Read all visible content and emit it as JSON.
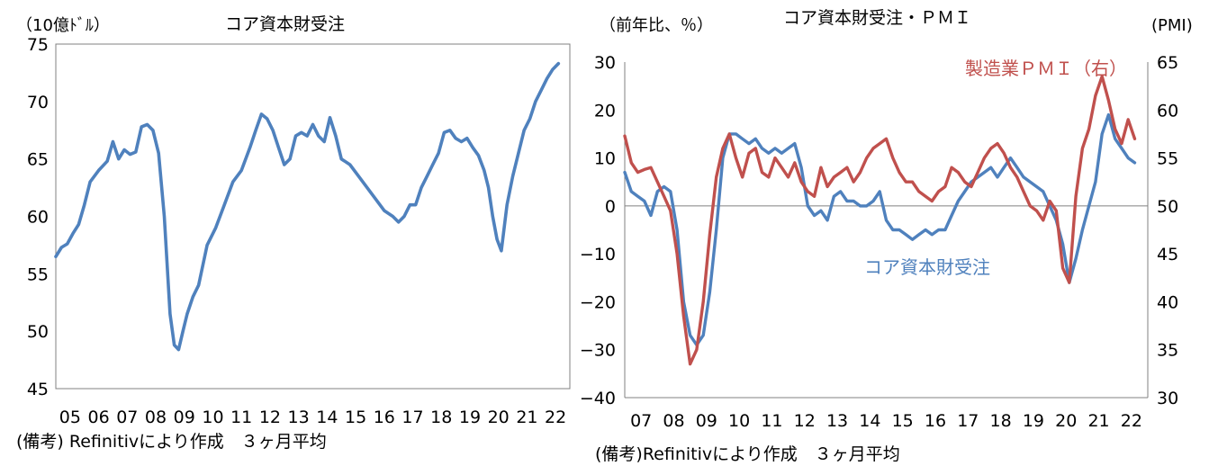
{
  "chart_data": [
    {
      "type": "line",
      "title": "コア資本財受注",
      "ylabel": "（10億ﾄﾞﾙ）",
      "ylim": [
        45,
        75
      ],
      "yticks": [
        "45",
        "50",
        "55",
        "60",
        "65",
        "70",
        "75"
      ],
      "xticks": [
        "05",
        "06",
        "07",
        "08",
        "09",
        "10",
        "11",
        "12",
        "13",
        "14",
        "15",
        "16",
        "17",
        "18",
        "19",
        "20",
        "21",
        "22"
      ],
      "xlim": [
        2005.0,
        2023.0
      ],
      "note": "(備考) Refinitivにより作成　３ヶ月平均",
      "series": [
        {
          "name": "",
          "color": "#4F81BD",
          "x": [
            2005.0,
            2005.2,
            2005.4,
            2005.6,
            2005.8,
            2006.0,
            2006.2,
            2006.5,
            2006.8,
            2007.0,
            2007.2,
            2007.4,
            2007.6,
            2007.8,
            2008.0,
            2008.2,
            2008.4,
            2008.6,
            2008.8,
            2009.0,
            2009.15,
            2009.3,
            2009.45,
            2009.6,
            2009.8,
            2010.0,
            2010.3,
            2010.6,
            2010.9,
            2011.2,
            2011.5,
            2011.8,
            2012.0,
            2012.2,
            2012.4,
            2012.6,
            2012.8,
            2013.0,
            2013.2,
            2013.4,
            2013.6,
            2013.8,
            2014.0,
            2014.2,
            2014.4,
            2014.6,
            2014.8,
            2015.0,
            2015.3,
            2015.6,
            2015.9,
            2016.2,
            2016.5,
            2016.8,
            2017.0,
            2017.2,
            2017.4,
            2017.6,
            2017.8,
            2018.0,
            2018.2,
            2018.4,
            2018.6,
            2018.8,
            2019.0,
            2019.2,
            2019.4,
            2019.6,
            2019.8,
            2020.0,
            2020.15,
            2020.3,
            2020.45,
            2020.6,
            2020.8,
            2021.0,
            2021.2,
            2021.4,
            2021.6,
            2021.8,
            2022.0,
            2022.2,
            2022.4,
            2022.6
          ],
          "values": [
            56.5,
            57.3,
            57.6,
            58.5,
            59.3,
            61.0,
            63.0,
            64.0,
            64.8,
            66.5,
            65.0,
            65.8,
            65.4,
            65.6,
            67.8,
            68.0,
            67.5,
            65.5,
            60.0,
            51.5,
            48.8,
            48.4,
            50.0,
            51.5,
            53.0,
            54.0,
            57.5,
            59.0,
            61.0,
            63.0,
            64.0,
            66.0,
            67.5,
            68.9,
            68.5,
            67.5,
            66.0,
            64.5,
            65.0,
            67.0,
            67.3,
            67.0,
            68.0,
            67.0,
            66.5,
            68.6,
            67.0,
            65.0,
            64.5,
            63.5,
            62.5,
            61.5,
            60.5,
            60.0,
            59.5,
            60.0,
            61.0,
            61.0,
            62.5,
            63.5,
            64.5,
            65.5,
            67.3,
            67.5,
            66.8,
            66.5,
            66.8,
            66.0,
            65.3,
            64.0,
            62.5,
            60.0,
            58.0,
            57.0,
            61.0,
            63.5,
            65.5,
            67.5,
            68.5,
            70.0,
            71.0,
            72.0,
            72.8,
            73.3
          ]
        }
      ]
    },
    {
      "type": "line",
      "title": "コア資本財受注・ＰＭＩ",
      "ylabel": "（前年比、％）",
      "ylabel_right": "(PMI)",
      "ylim": [
        -40,
        30
      ],
      "ylim_right": [
        30,
        65
      ],
      "yticks": [
        "30",
        "20",
        "10",
        "0",
        "−10",
        "−20",
        "−30",
        "−40"
      ],
      "yticks_right": [
        "65",
        "60",
        "55",
        "50",
        "45",
        "40",
        "35",
        "30"
      ],
      "xticks": [
        "07",
        "08",
        "09",
        "10",
        "11",
        "12",
        "13",
        "14",
        "15",
        "16",
        "17",
        "18",
        "19",
        "20",
        "21",
        "22"
      ],
      "xlim": [
        2007.0,
        2023.0
      ],
      "note": "(備考)Refinitivにより作成　３ヶ月平均",
      "series": [
        {
          "name": "コア資本財受注",
          "color": "#4F81BD",
          "axis": "left",
          "x": [
            2007.0,
            2007.2,
            2007.4,
            2007.6,
            2007.8,
            2008.0,
            2008.2,
            2008.4,
            2008.6,
            2008.8,
            2009.0,
            2009.2,
            2009.4,
            2009.6,
            2009.8,
            2010.0,
            2010.2,
            2010.4,
            2010.6,
            2010.8,
            2011.0,
            2011.2,
            2011.4,
            2011.6,
            2011.8,
            2012.0,
            2012.2,
            2012.4,
            2012.6,
            2012.8,
            2013.0,
            2013.2,
            2013.4,
            2013.6,
            2013.8,
            2014.0,
            2014.2,
            2014.4,
            2014.6,
            2014.8,
            2015.0,
            2015.2,
            2015.4,
            2015.6,
            2015.8,
            2016.0,
            2016.2,
            2016.4,
            2016.6,
            2016.8,
            2017.0,
            2017.2,
            2017.4,
            2017.6,
            2017.8,
            2018.0,
            2018.2,
            2018.4,
            2018.6,
            2018.8,
            2019.0,
            2019.2,
            2019.4,
            2019.6,
            2019.8,
            2020.0,
            2020.2,
            2020.4,
            2020.6,
            2020.8,
            2021.0,
            2021.2,
            2021.4,
            2021.6,
            2021.8,
            2022.0,
            2022.2,
            2022.4,
            2022.6
          ],
          "values": [
            7,
            3,
            2,
            1,
            -2,
            3,
            4,
            3,
            -5,
            -20,
            -27,
            -29,
            -27,
            -18,
            -5,
            10,
            15,
            15,
            14,
            13,
            14,
            12,
            11,
            12,
            11,
            12,
            13,
            8,
            0,
            -2,
            -1,
            -3,
            2,
            3,
            1,
            1,
            0,
            0,
            1,
            3,
            -3,
            -5,
            -5,
            -6,
            -7,
            -6,
            -5,
            -6,
            -5,
            -5,
            -2,
            1,
            3,
            5,
            6,
            7,
            8,
            6,
            8,
            10,
            8,
            6,
            5,
            4,
            3,
            0,
            -3,
            -8,
            -16,
            -11,
            -5,
            0,
            5,
            15,
            19,
            14,
            12,
            10,
            9
          ]
        },
        {
          "name": "製造業ＰＭＩ（右）",
          "color": "#C0504D",
          "axis": "right",
          "x": [
            2007.0,
            2007.2,
            2007.4,
            2007.6,
            2007.8,
            2008.0,
            2008.2,
            2008.4,
            2008.6,
            2008.8,
            2009.0,
            2009.2,
            2009.4,
            2009.6,
            2009.8,
            2010.0,
            2010.2,
            2010.4,
            2010.6,
            2010.8,
            2011.0,
            2011.2,
            2011.4,
            2011.6,
            2011.8,
            2012.0,
            2012.2,
            2012.4,
            2012.6,
            2012.8,
            2013.0,
            2013.2,
            2013.4,
            2013.6,
            2013.8,
            2014.0,
            2014.2,
            2014.4,
            2014.6,
            2014.8,
            2015.0,
            2015.2,
            2015.4,
            2015.6,
            2015.8,
            2016.0,
            2016.2,
            2016.4,
            2016.6,
            2016.8,
            2017.0,
            2017.2,
            2017.4,
            2017.6,
            2017.8,
            2018.0,
            2018.2,
            2018.4,
            2018.6,
            2018.8,
            2019.0,
            2019.2,
            2019.4,
            2019.6,
            2019.8,
            2020.0,
            2020.2,
            2020.4,
            2020.6,
            2020.8,
            2021.0,
            2021.2,
            2021.4,
            2021.6,
            2021.8,
            2022.0,
            2022.2,
            2022.4,
            2022.6
          ],
          "values": [
            57.3,
            54.5,
            53.5,
            53.8,
            54.0,
            52.5,
            51.0,
            49.5,
            45.0,
            38.5,
            33.5,
            35.0,
            40.0,
            47.0,
            53.0,
            56.0,
            57.5,
            55.0,
            53.0,
            55.5,
            56.0,
            53.5,
            53.0,
            55.0,
            54.0,
            53.0,
            54.5,
            52.5,
            51.5,
            51.0,
            54.0,
            52.0,
            53.0,
            53.5,
            54.0,
            52.5,
            53.5,
            55.0,
            56.0,
            56.5,
            57.0,
            55.0,
            53.5,
            52.5,
            52.5,
            51.5,
            51.0,
            50.5,
            51.5,
            52.0,
            54.0,
            53.5,
            52.5,
            52.0,
            53.5,
            55.0,
            56.0,
            56.5,
            55.5,
            54.0,
            53.0,
            51.5,
            50.0,
            49.5,
            48.5,
            50.5,
            49.5,
            43.5,
            42.0,
            51.0,
            56.0,
            58.0,
            61.5,
            63.5,
            61.0,
            58.0,
            56.5,
            59.0,
            57.0
          ]
        }
      ]
    }
  ]
}
